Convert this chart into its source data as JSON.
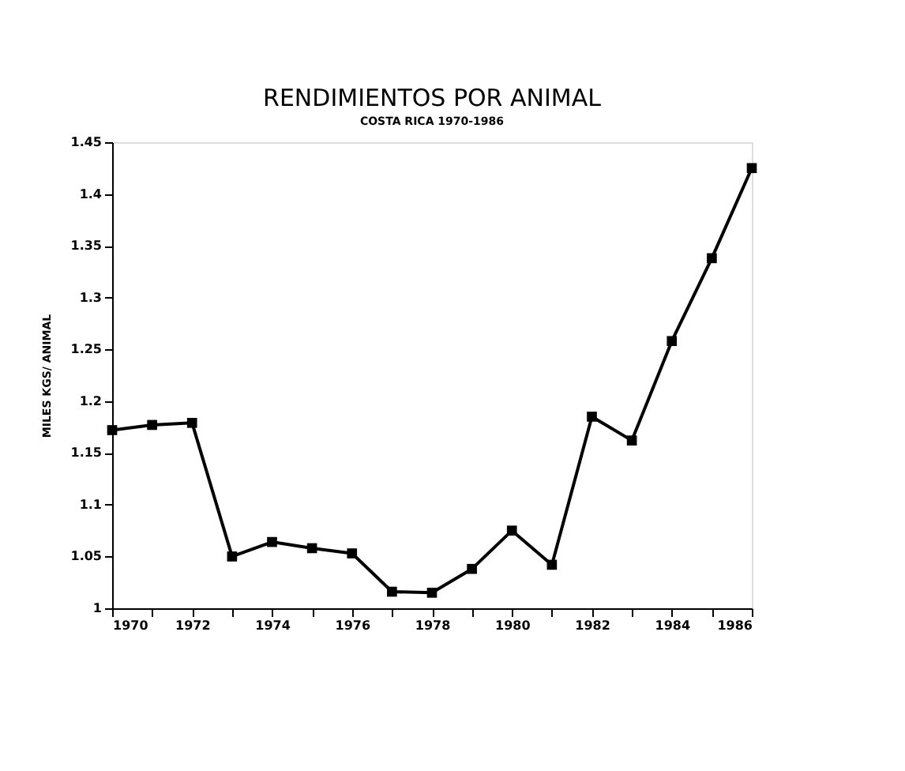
{
  "chart_data": {
    "type": "line",
    "title": "RENDIMIENTOS POR ANIMAL",
    "subtitle": "COSTA RICA 1970-1986",
    "ylabel": "MILES KGS/ ANIMAL",
    "x": [
      1970,
      1971,
      1972,
      1973,
      1974,
      1975,
      1976,
      1977,
      1978,
      1979,
      1980,
      1981,
      1982,
      1983,
      1984,
      1985,
      1986
    ],
    "series": [
      {
        "color": "#000000",
        "values": [
          1.172,
          1.177,
          1.179,
          1.05,
          1.064,
          1.058,
          1.053,
          1.016,
          1.015,
          1.038,
          1.075,
          1.042,
          1.185,
          1.162,
          1.258,
          1.338,
          1.425
        ]
      }
    ],
    "xlim": [
      1970,
      1986
    ],
    "xticks": [
      1970,
      {
        "value": 1971,
        "label": null
      },
      1972,
      {
        "value": 1973,
        "label": null
      },
      1974,
      {
        "value": 1975,
        "label": null
      },
      1976,
      {
        "value": 1977,
        "label": null
      },
      1978,
      {
        "value": 1979,
        "label": null
      },
      1980,
      {
        "value": 1981,
        "label": null
      },
      1982,
      {
        "value": 1983,
        "label": null
      },
      1984,
      {
        "value": 1985,
        "label": null
      },
      1986
    ],
    "ylim": [
      1,
      1.45
    ],
    "yticks": [
      1,
      1.05,
      1.1,
      1.15,
      1.2,
      1.25,
      1.3,
      1.35,
      1.4,
      1.45
    ],
    "grid": false,
    "marker": "square",
    "line_style": "solid"
  }
}
